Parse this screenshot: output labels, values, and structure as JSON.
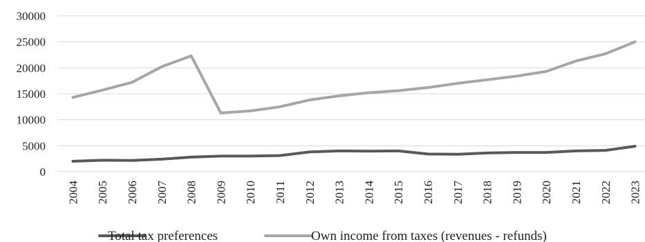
{
  "chart_data": {
    "type": "line",
    "title": "",
    "xlabel": "",
    "ylabel": "",
    "x": [
      "2004",
      "2005",
      "2006",
      "2007",
      "2008",
      "2009",
      "2010",
      "2011",
      "2012",
      "2013",
      "2014",
      "2015",
      "2016",
      "2017",
      "2018",
      "2019",
      "2020",
      "2021",
      "2022",
      "2023"
    ],
    "ylim": [
      0,
      30000
    ],
    "yticks": [
      "0",
      "5000",
      "10000",
      "15000",
      "20000",
      "25000",
      "30000"
    ],
    "grid": true,
    "legend": "bottom",
    "series": [
      {
        "name": "Total tax preferences",
        "color": "#595959",
        "values": [
          2000,
          2200,
          2150,
          2400,
          2800,
          3000,
          3000,
          3100,
          3800,
          4000,
          3950,
          4000,
          3400,
          3350,
          3600,
          3700,
          3700,
          4000,
          4100,
          4900
        ]
      },
      {
        "name": "Own income from taxes (revenues - refunds)",
        "color": "#a6a6a6",
        "values": [
          14300,
          15700,
          17200,
          20200,
          22300,
          11300,
          11700,
          12500,
          13800,
          14600,
          15200,
          15600,
          16200,
          17000,
          17700,
          18400,
          19300,
          21300,
          22700,
          25000
        ]
      }
    ]
  }
}
